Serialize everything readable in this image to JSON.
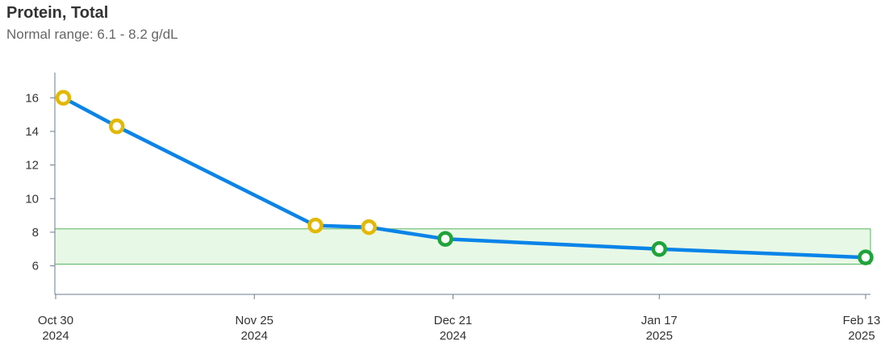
{
  "title": "Protein, Total",
  "subtitle": "Normal range: 6.1 - 8.2 g/dL",
  "colors": {
    "line": "#0a84e8",
    "range_fill": "#e8f8e6",
    "range_stroke": "#59b561",
    "out_of_range_point": "#e3b800",
    "in_range_point": "#1fa33a",
    "axis": "#6b7b8c"
  },
  "chart_data": {
    "type": "line",
    "title": "Protein, Total",
    "subtitle": "Normal range: 6.1 - 8.2 g/dL",
    "xlabel": "",
    "ylabel": "",
    "ylim": [
      4.3,
      17.5
    ],
    "xlim": [
      "2024-10-30",
      "2025-02-13"
    ],
    "y_ticks": [
      6,
      8,
      10,
      12,
      14,
      16
    ],
    "x_ticks": [
      {
        "date": "2024-10-30",
        "line1": "Oct 30",
        "line2": "2024"
      },
      {
        "date": "2024-11-25",
        "line1": "Nov 25",
        "line2": "2024"
      },
      {
        "date": "2024-12-21",
        "line1": "Dec 21",
        "line2": "2024"
      },
      {
        "date": "2025-01-17",
        "line1": "Jan 17",
        "line2": "2025"
      },
      {
        "date": "2025-02-13",
        "line1": "Feb 13",
        "line2": "2025"
      }
    ],
    "normal_range": [
      6.1,
      8.2
    ],
    "series": [
      {
        "points": [
          {
            "date": "2024-10-31",
            "y": 16.0,
            "status": "out"
          },
          {
            "date": "2024-11-07",
            "y": 14.3,
            "status": "out"
          },
          {
            "date": "2024-12-03",
            "y": 8.4,
            "status": "out"
          },
          {
            "date": "2024-12-10",
            "y": 8.3,
            "status": "out"
          },
          {
            "date": "2024-12-20",
            "y": 7.6,
            "status": "in"
          },
          {
            "date": "2025-01-17",
            "y": 7.0,
            "status": "in"
          },
          {
            "date": "2025-02-13",
            "y": 6.5,
            "status": "in"
          }
        ]
      }
    ],
    "grid": false,
    "legend": "none"
  }
}
